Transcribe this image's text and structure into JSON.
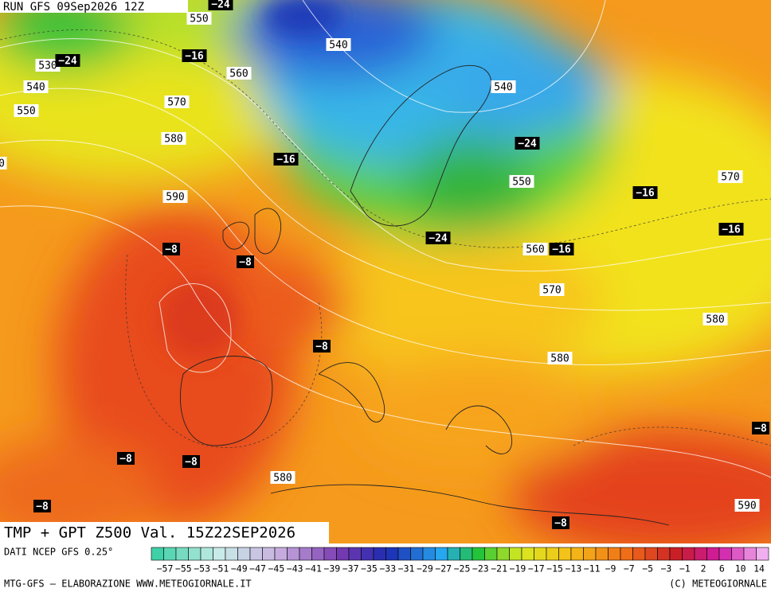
{
  "header": {
    "run": "RUN GFS 09Sep2026 12Z"
  },
  "map": {
    "height_labels": [
      "550",
      "540",
      "530",
      "560",
      "540",
      "570",
      "550",
      "540",
      "580",
      "550",
      "590",
      "570",
      "560",
      "570",
      "580",
      "580",
      "580",
      "590",
      "0"
    ],
    "temperature_labels": [
      "−24",
      "−24",
      "−16",
      "−16",
      "−24",
      "−16",
      "−16",
      "−24",
      "−16",
      "−8",
      "−8",
      "−8",
      "−8",
      "−8",
      "−8",
      "−8",
      "−8"
    ]
  },
  "title": "TMP + GPT Z500 Val. 15Z22SEP2026",
  "legend": {
    "source": "DATI NCEP GFS 0.25°",
    "labels": [
      "−57",
      "−55",
      "−53",
      "−51",
      "−49",
      "−47",
      "−45",
      "−43",
      "−41",
      "−39",
      "−37",
      "−35",
      "−33",
      "−31",
      "−29",
      "−27",
      "−25",
      "−23",
      "−21",
      "−19",
      "−17",
      "−15",
      "−13",
      "−11",
      "−9",
      "−7",
      "−5",
      "−3",
      "−1",
      "2",
      "6",
      "10",
      "14"
    ]
  },
  "footer": {
    "left": "MTG-GFS — ELABORAZIONE WWW.METEOGIORNALE.IT",
    "right": "(C) METEOGIORNALE"
  }
}
